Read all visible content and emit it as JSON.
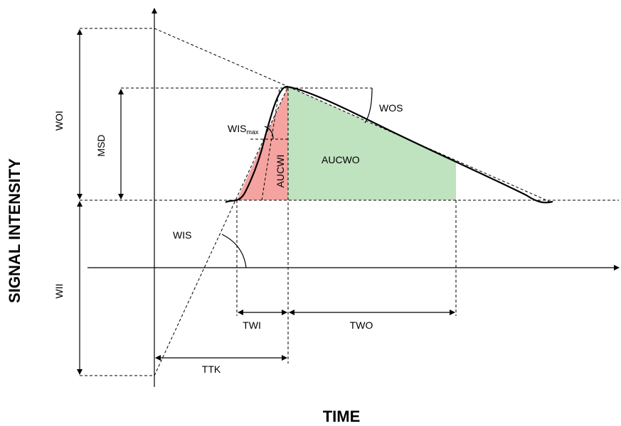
{
  "axes": {
    "x_title": "TIME",
    "y_title": "SIGNAL INTENSITY"
  },
  "labels": {
    "woi": "WOI",
    "wii": "WII",
    "msd": "MSD",
    "wis": "WIS",
    "wis_max_base": "WIS",
    "wis_max_sub": "max",
    "wos": "WOS",
    "aucwi": "AUCWI",
    "aucwo": "AUCWO",
    "twi": "TWI",
    "two": "TWO",
    "ttk": "TTK"
  },
  "colors": {
    "wash_in_area": "#f4a3a0",
    "wash_out_area": "#bfe2bf",
    "lines": "#000000"
  }
}
